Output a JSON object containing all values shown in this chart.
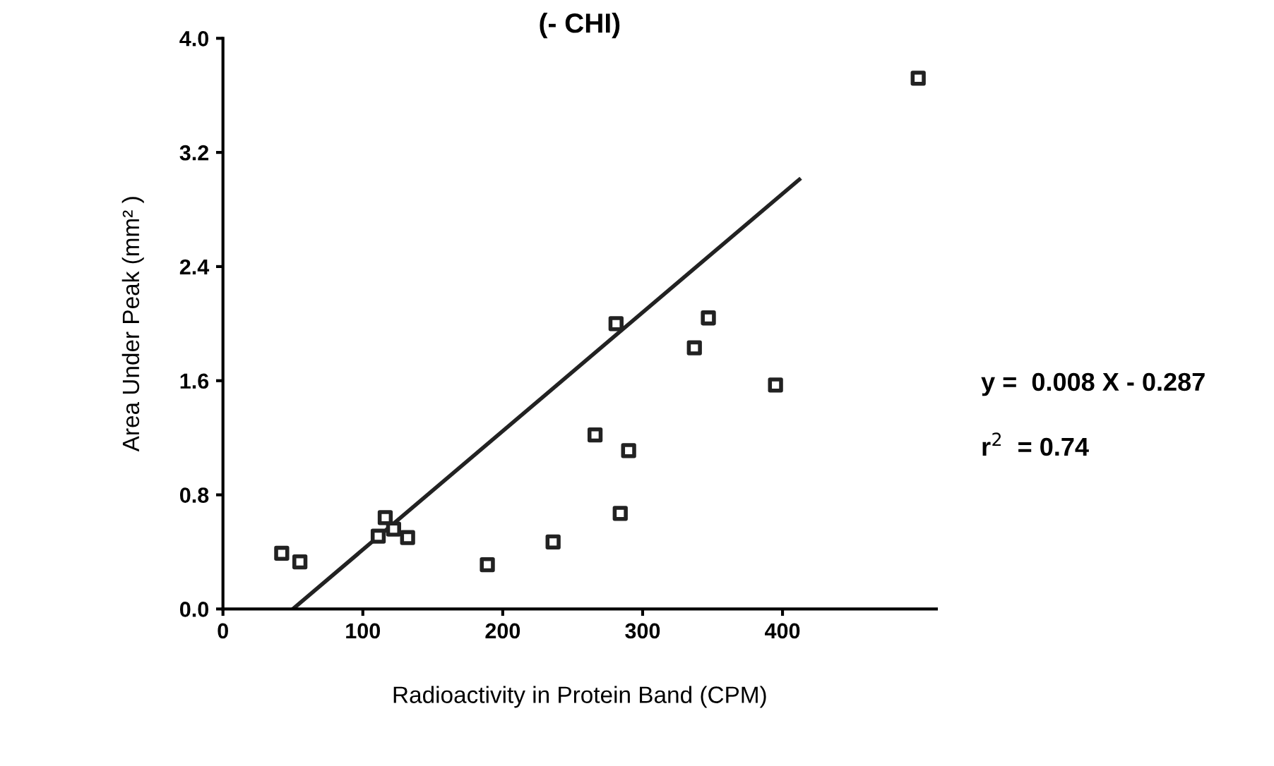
{
  "chart_data": {
    "type": "scatter",
    "title": "(- CHI)",
    "xlabel": "Radioactivity in Protein Band (CPM)",
    "ylabel": "Area Under Peak (mm² )",
    "xlim": [
      0,
      510
    ],
    "ylim": [
      0,
      4.0
    ],
    "xticks": [
      0,
      100,
      200,
      300,
      400
    ],
    "yticks": [
      {
        "value": 0,
        "label": "0.0"
      },
      {
        "value": 0.8,
        "label": "0.8"
      },
      {
        "value": 1.6,
        "label": "1.6"
      },
      {
        "value": 2.4,
        "label": "2.4"
      },
      {
        "value": 3.2,
        "label": "3.2"
      },
      {
        "value": 4.0,
        "label": "4.0"
      }
    ],
    "grid": false,
    "legend": false,
    "series": [
      {
        "marker": "square",
        "color": "#222222",
        "x": [
          42,
          55,
          116,
          111,
          122,
          132,
          189,
          236,
          266,
          290,
          284,
          281,
          337,
          347,
          395,
          497
        ],
        "values": [
          0.39,
          0.33,
          0.64,
          0.51,
          0.56,
          0.5,
          0.31,
          0.47,
          1.22,
          1.11,
          0.67,
          2.0,
          1.83,
          2.04,
          1.57,
          3.72
        ]
      },
      {
        "type": "line",
        "marker": "none",
        "color": "#222222",
        "x": [
          50,
          412
        ],
        "values": [
          0,
          3.01
        ]
      }
    ],
    "annotations": [
      "y =  0.008 X - 0.287",
      "r$^{2}$  = 0.74"
    ]
  }
}
